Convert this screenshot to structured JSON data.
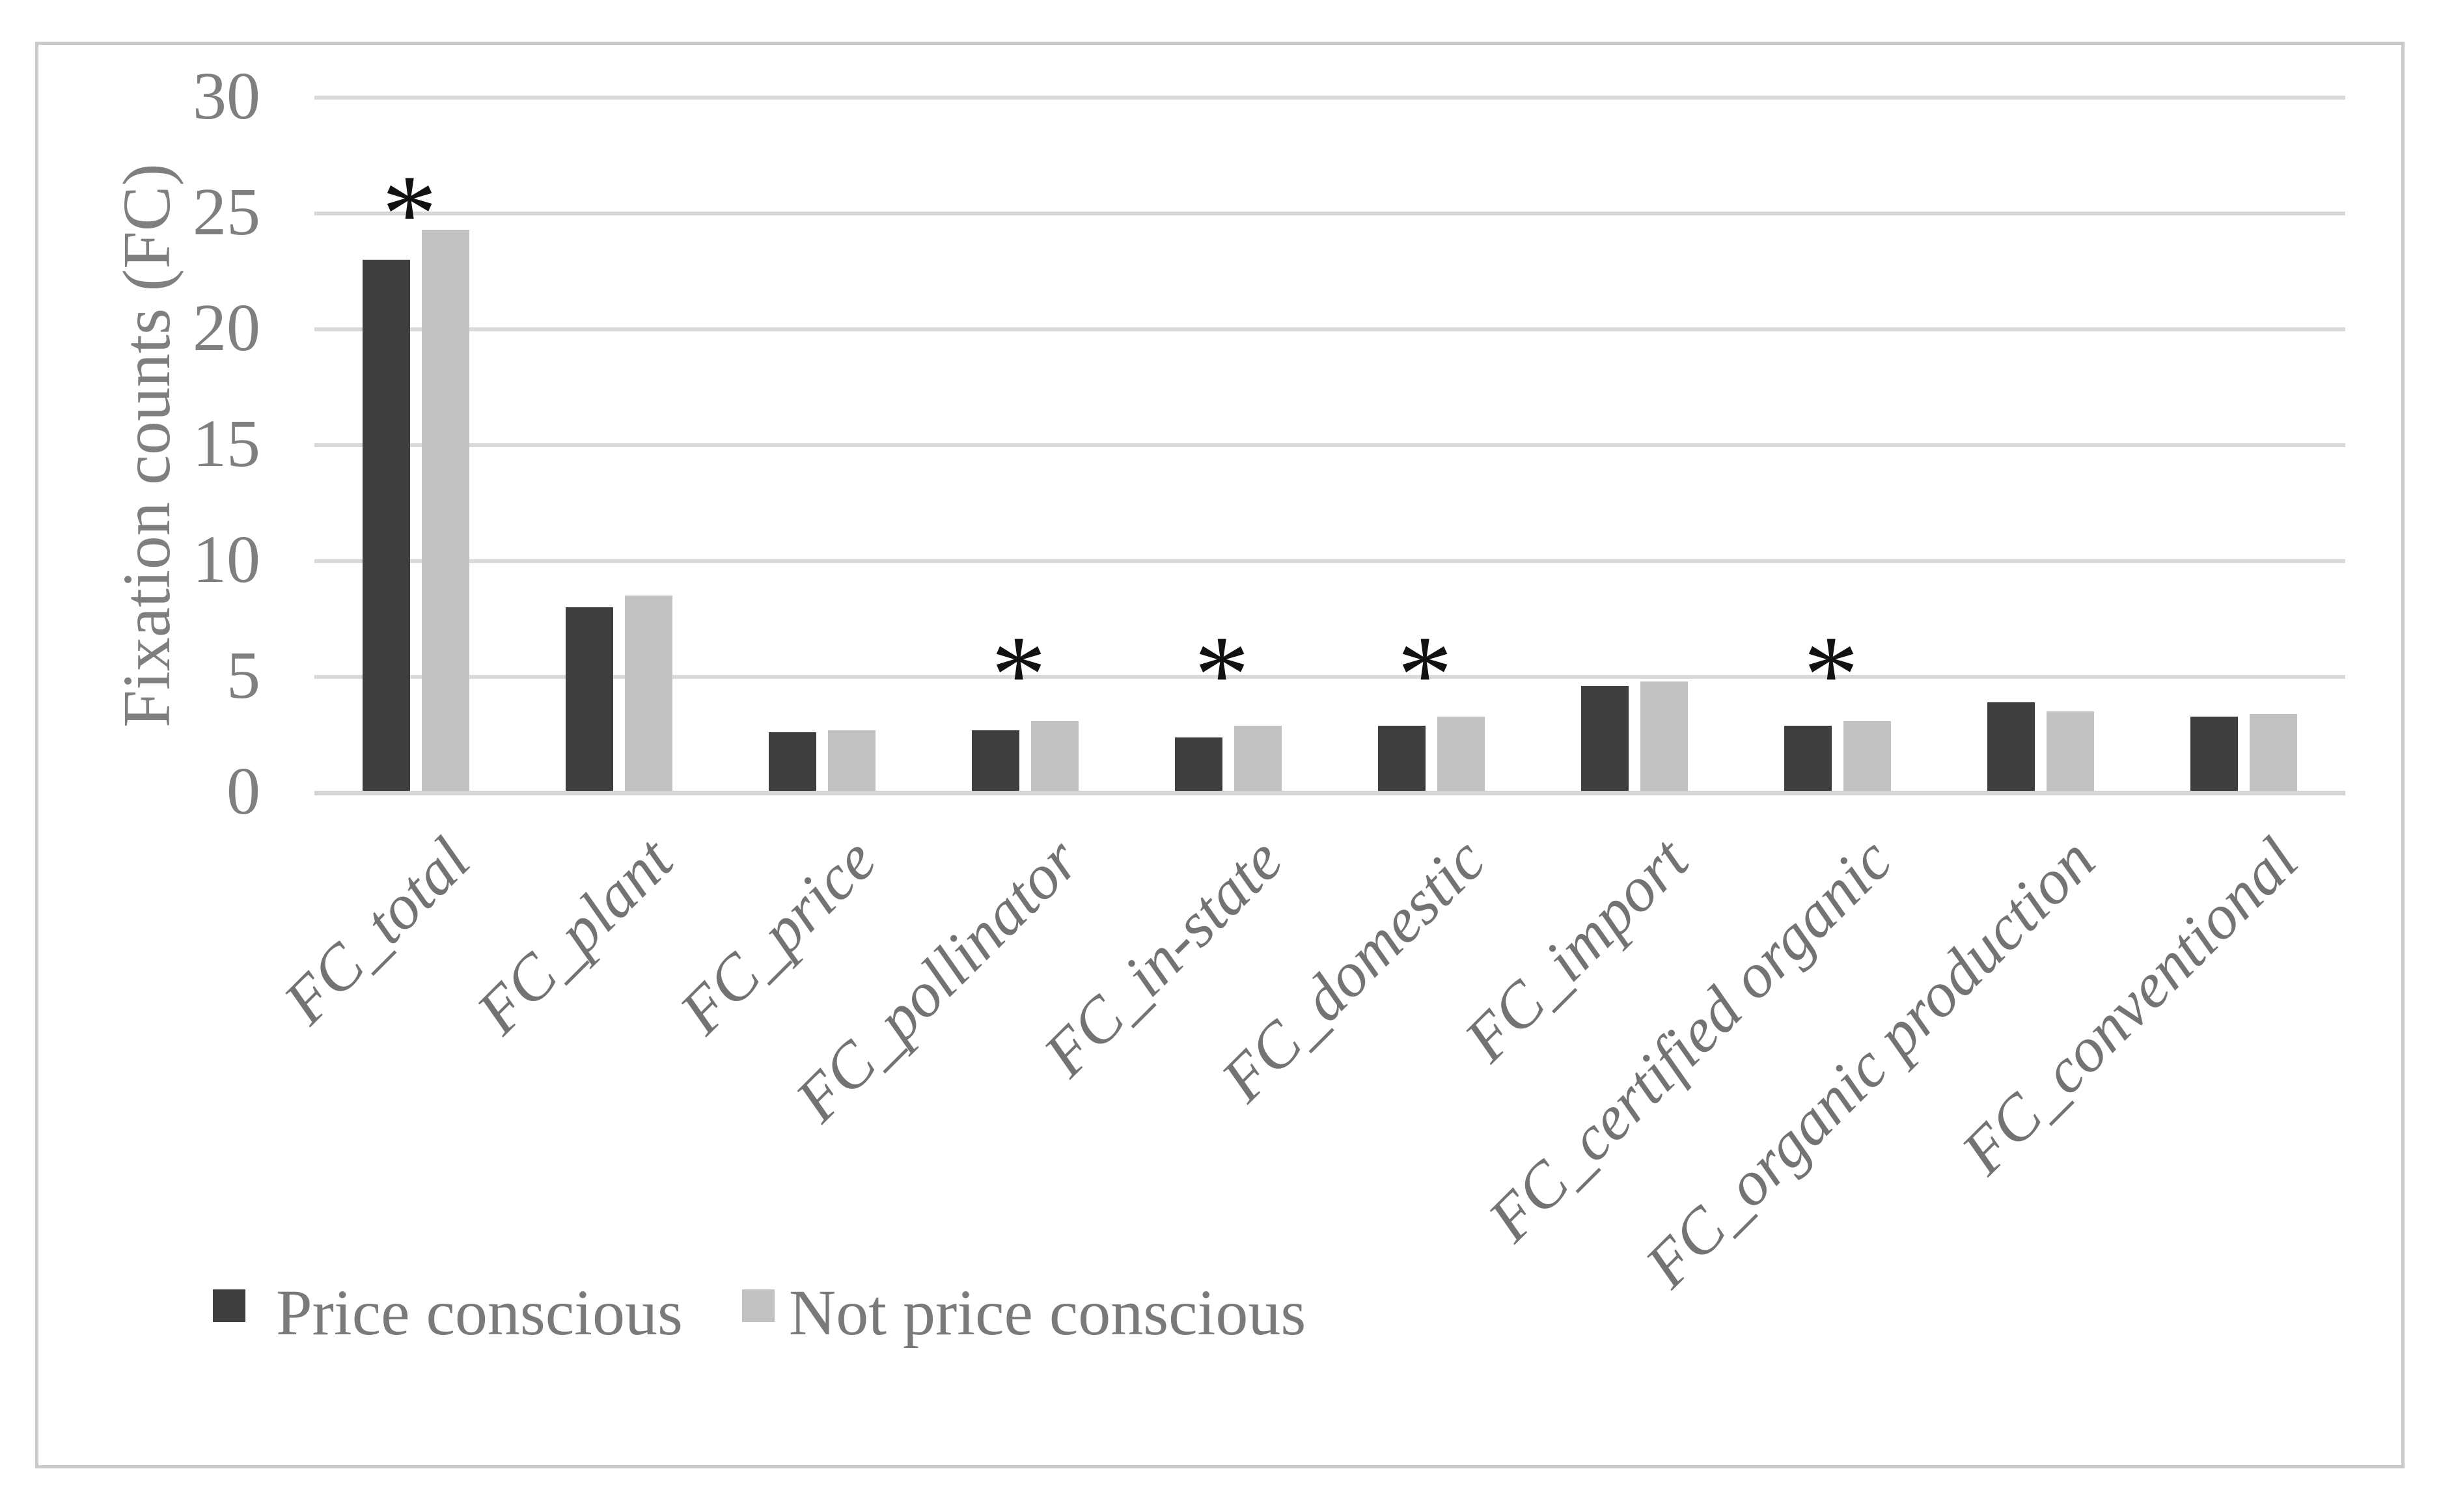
{
  "figure": {
    "background_color": "#ffffff",
    "border_color": "#c9c9c9"
  },
  "chart_data": {
    "type": "bar",
    "title": "",
    "xlabel": "",
    "ylabel": "Fixation counts (FC)",
    "ylim": [
      0,
      30
    ],
    "yticks": [
      0,
      5,
      10,
      15,
      20,
      25,
      30
    ],
    "grid": "horizontal-major",
    "gridline_color": "#d9d9d9",
    "axis_text_color": "#7f7f7f",
    "category_text_color": "#737373",
    "legend_position": "bottom-left",
    "categories": [
      "FC_total",
      "FC_plant",
      "FC_price",
      "FC_pollinator",
      "FC_in-state",
      "FC_domestic",
      "FC_import",
      "FC_certified organic",
      "FC_organic production",
      "FC_conventional"
    ],
    "series": [
      {
        "name": "Price conscious",
        "color": "#3e3e3e",
        "values": [
          23.0,
          8.0,
          2.6,
          2.7,
          2.4,
          2.9,
          4.6,
          2.9,
          3.9,
          3.3
        ]
      },
      {
        "name": "Not price conscious",
        "color": "#c2c2c2",
        "values": [
          24.3,
          8.5,
          2.7,
          3.1,
          2.9,
          3.3,
          4.8,
          3.1,
          3.5,
          3.4
        ]
      }
    ],
    "annotations": [
      {
        "category": "FC_total",
        "symbol": "*",
        "y": 25.8
      },
      {
        "category": "FC_pollinator",
        "symbol": "*",
        "y": 5.9
      },
      {
        "category": "FC_in-state",
        "symbol": "*",
        "y": 5.9
      },
      {
        "category": "FC_domestic",
        "symbol": "*",
        "y": 5.9
      },
      {
        "category": "FC_certified organic",
        "symbol": "*",
        "y": 5.9
      }
    ]
  }
}
